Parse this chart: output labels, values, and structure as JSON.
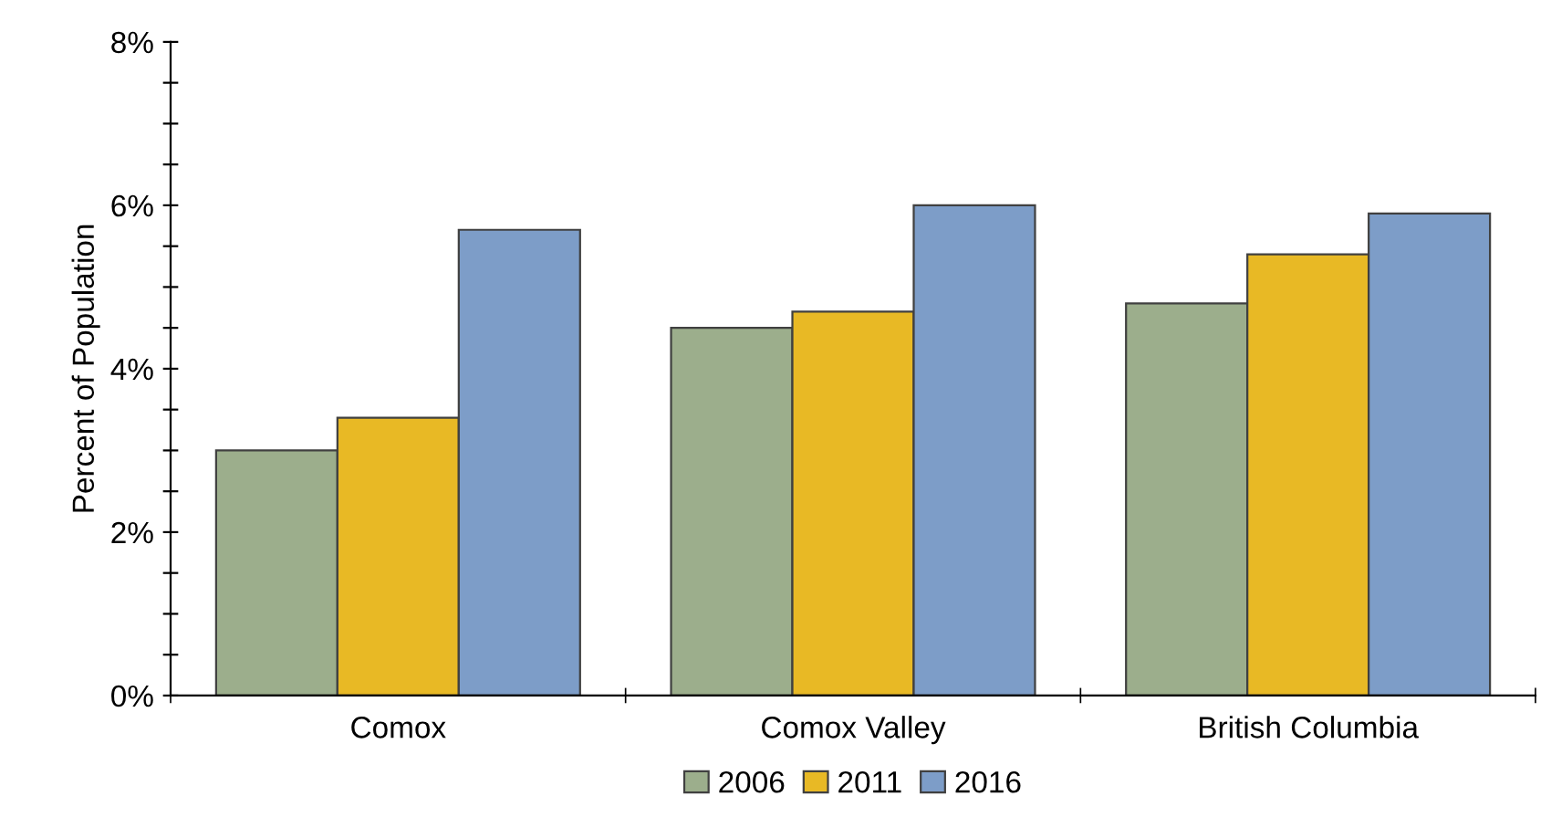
{
  "chart_data": {
    "type": "bar",
    "ylabel": "Percent of Population",
    "categories": [
      "Comox",
      "Comox Valley",
      "British Columbia"
    ],
    "series": [
      {
        "name": "2006",
        "color": "#9cae8c",
        "values": [
          3.0,
          4.5,
          4.8
        ]
      },
      {
        "name": "2011",
        "color": "#e8b925",
        "values": [
          3.4,
          4.7,
          5.4
        ]
      },
      {
        "name": "2016",
        "color": "#7d9dc8",
        "values": [
          5.7,
          6.0,
          5.9
        ]
      }
    ],
    "ylim": [
      0,
      8
    ],
    "yticks": [
      {
        "value": 0,
        "label": "0%"
      },
      {
        "value": 0.5,
        "label": null
      },
      {
        "value": 1,
        "label": null
      },
      {
        "value": 1.5,
        "label": null
      },
      {
        "value": 2,
        "label": "2%"
      },
      {
        "value": 2.5,
        "label": null
      },
      {
        "value": 3,
        "label": null
      },
      {
        "value": 3.5,
        "label": null
      },
      {
        "value": 4,
        "label": "4%"
      },
      {
        "value": 4.5,
        "label": null
      },
      {
        "value": 5,
        "label": null
      },
      {
        "value": 5.5,
        "label": null
      },
      {
        "value": 6,
        "label": "6%"
      },
      {
        "value": 6.5,
        "label": null
      },
      {
        "value": 7,
        "label": null
      },
      {
        "value": 7.5,
        "label": null
      },
      {
        "value": 8,
        "label": "8%"
      }
    ],
    "grid": false,
    "legend": "bottom"
  }
}
